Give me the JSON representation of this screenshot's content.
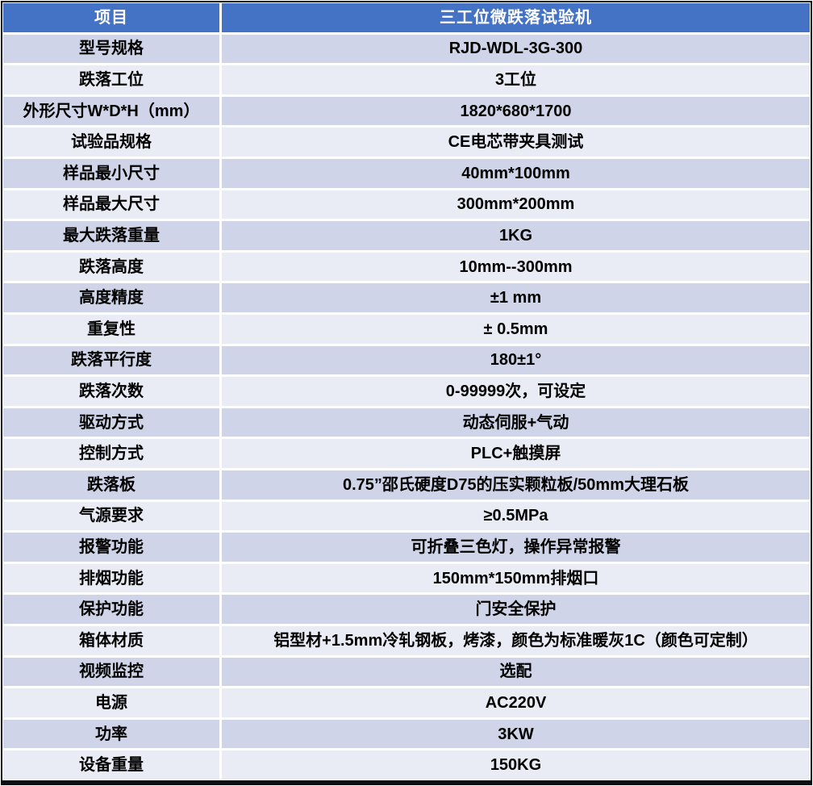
{
  "table": {
    "header": {
      "col1": "项目",
      "col2": "三工位微跌落试验机"
    },
    "rows": [
      {
        "label": "型号规格",
        "value": "RJD-WDL-3G-300"
      },
      {
        "label": "跌落工位",
        "value": "3工位"
      },
      {
        "label": "外形尺寸W*D*H（mm）",
        "value": "1820*680*1700"
      },
      {
        "label": "试验品规格",
        "value": "CE电芯带夹具测试"
      },
      {
        "label": "样品最小尺寸",
        "value": "40mm*100mm"
      },
      {
        "label": "样品最大尺寸",
        "value": "300mm*200mm"
      },
      {
        "label": "最大跌落重量",
        "value": "1KG"
      },
      {
        "label": "跌落高度",
        "value": "10mm--300mm"
      },
      {
        "label": "高度精度",
        "value": "±1 mm"
      },
      {
        "label": "重复性",
        "value": "± 0.5mm"
      },
      {
        "label": "跌落平行度",
        "value": "180±1°"
      },
      {
        "label": "跌落次数",
        "value": "0-99999次，可设定"
      },
      {
        "label": "驱动方式",
        "value": "动态伺服+气动"
      },
      {
        "label": "控制方式",
        "value": "PLC+触摸屏"
      },
      {
        "label": "跌落板",
        "value": "0.75”邵氏硬度D75的压实颗粒板/50mm大理石板"
      },
      {
        "label": "气源要求",
        "value": "≥0.5MPa"
      },
      {
        "label": "报警功能",
        "value": "可折叠三色灯，操作异常报警"
      },
      {
        "label": "排烟功能",
        "value": "150mm*150mm排烟口"
      },
      {
        "label": "保护功能",
        "value": "门安全保护"
      },
      {
        "label": "箱体材质",
        "value": "铝型材+1.5mm冷轧钢板，烤漆，颜色为标准暖灰1C（颜色可定制）"
      },
      {
        "label": "视频监控",
        "value": "选配"
      },
      {
        "label": "电源",
        "value": "AC220V"
      },
      {
        "label": "功率",
        "value": "3KW"
      },
      {
        "label": "设备重量",
        "value": "150KG"
      }
    ],
    "colors": {
      "header_bg": "#4472C4",
      "header_text": "#FFFFFF",
      "band_dark": "#CFD4E8",
      "band_light": "#E9EBF5",
      "separator": "#FFFFFF",
      "outer_border": "#0D0D14"
    }
  }
}
